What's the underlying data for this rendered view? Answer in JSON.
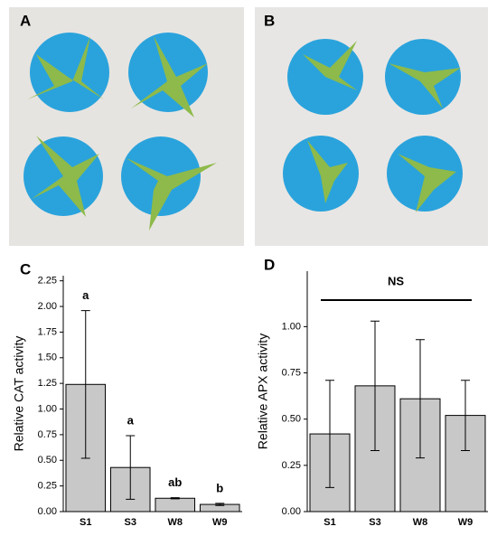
{
  "panel_labels": [
    "A",
    "B"
  ],
  "chart_data": [
    {
      "type": "bar",
      "label": "C",
      "y_label": "Relative CAT activity",
      "categories": [
        "S1",
        "S3",
        "W8",
        "W9"
      ],
      "values": [
        1.24,
        0.43,
        0.13,
        0.07
      ],
      "errors": [
        0.72,
        0.31,
        0.005,
        0.01
      ],
      "annotations": [
        "a",
        "a",
        "ab",
        "b"
      ],
      "color": "#c8c8c8",
      "ylim": [
        0,
        2.3
      ],
      "yticks": [
        {
          "value": 0,
          "label": "0.00"
        },
        0.25,
        {
          "value": 0.5,
          "label": "0.50"
        },
        0.75,
        {
          "value": 1,
          "label": "1.00"
        },
        1.25,
        {
          "value": 1.5,
          "label": "1.50"
        },
        1.75,
        {
          "value": 2,
          "label": "2.00"
        },
        2.25
      ]
    },
    {
      "type": "bar",
      "label": "D",
      "y_label": "Relative APX activity",
      "categories": [
        "S1",
        "S3",
        "W8",
        "W9"
      ],
      "values": [
        0.42,
        0.68,
        0.61,
        0.52
      ],
      "errors": [
        0.29,
        0.35,
        0.32,
        0.19
      ],
      "annotation": "NS",
      "color": "#c8c8c8",
      "ylim": [
        0,
        1.3
      ],
      "yticks": [
        {
          "value": 0,
          "label": "0.00"
        },
        0.25,
        {
          "value": 0.5,
          "label": "0.50"
        },
        0.75,
        {
          "value": 1,
          "label": "1.00"
        }
      ]
    }
  ]
}
